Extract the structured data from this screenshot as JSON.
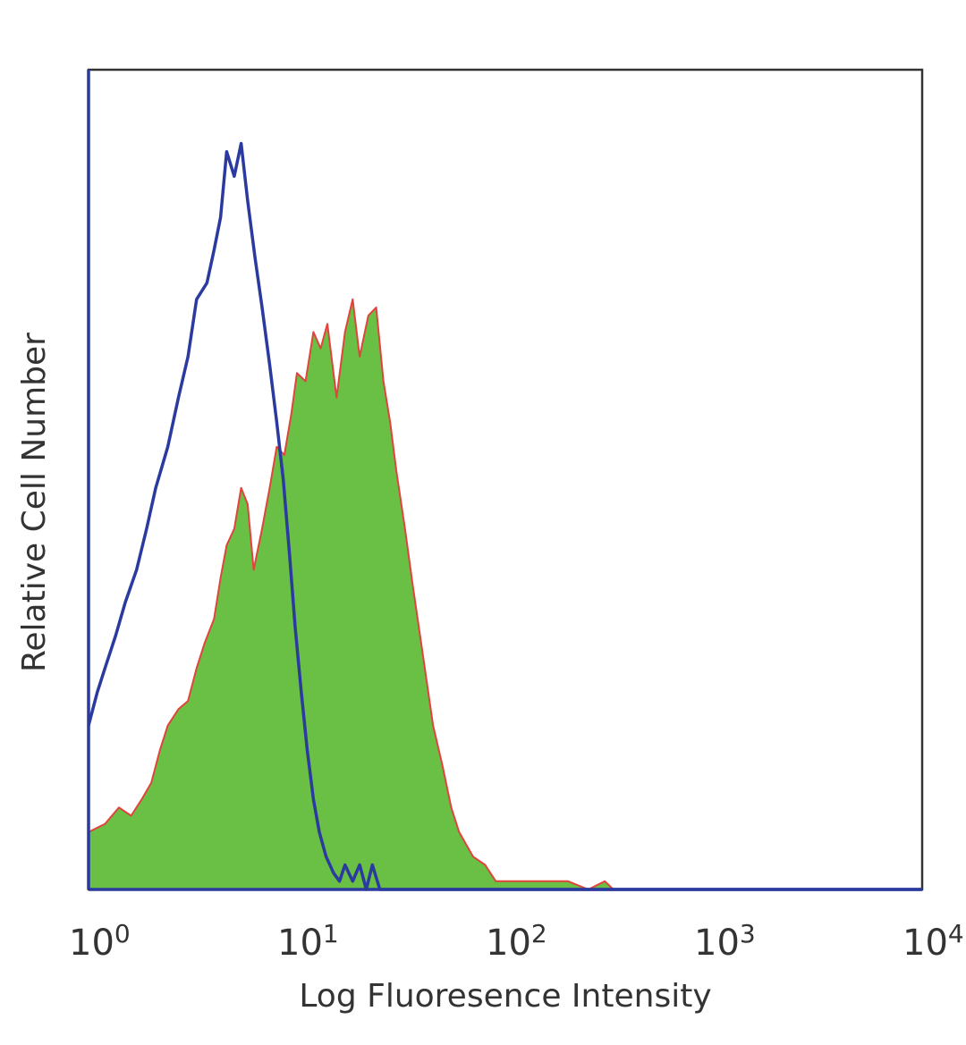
{
  "chart_data": {
    "type": "area",
    "title": "",
    "xlabel": "Log Fluoresence Intensity",
    "ylabel": "Relative Cell Number",
    "xscale": "log",
    "xlim": [
      1,
      10000
    ],
    "ylim": [
      0,
      100
    ],
    "grid": false,
    "legend": "none",
    "xticks": [
      {
        "value": 1,
        "base": "10",
        "exp": "0"
      },
      {
        "value": 10,
        "base": "10",
        "exp": "1"
      },
      {
        "value": 100,
        "base": "10",
        "exp": "2"
      },
      {
        "value": 1000,
        "base": "10",
        "exp": "3"
      },
      {
        "value": 10000,
        "base": "10",
        "exp": "4"
      }
    ],
    "series": [
      {
        "style": "line",
        "color": "#2b3a9e",
        "points": [
          [
            1.0,
            20
          ],
          [
            1.1,
            24
          ],
          [
            1.2,
            27
          ],
          [
            1.35,
            31
          ],
          [
            1.5,
            35
          ],
          [
            1.7,
            39
          ],
          [
            1.9,
            44
          ],
          [
            2.1,
            49
          ],
          [
            2.4,
            54
          ],
          [
            2.7,
            60
          ],
          [
            3.0,
            65
          ],
          [
            3.3,
            72
          ],
          [
            3.7,
            74
          ],
          [
            4.0,
            78
          ],
          [
            4.3,
            82
          ],
          [
            4.6,
            90
          ],
          [
            5.0,
            87
          ],
          [
            5.4,
            91
          ],
          [
            5.8,
            84
          ],
          [
            6.3,
            77
          ],
          [
            6.8,
            71
          ],
          [
            7.4,
            64
          ],
          [
            8.0,
            57
          ],
          [
            8.6,
            50
          ],
          [
            9.2,
            41
          ],
          [
            9.8,
            32
          ],
          [
            10.5,
            24
          ],
          [
            11.2,
            17
          ],
          [
            12.0,
            11
          ],
          [
            12.8,
            7
          ],
          [
            13.8,
            4
          ],
          [
            15.0,
            2
          ],
          [
            16.0,
            1
          ],
          [
            17.0,
            3
          ],
          [
            18.5,
            1
          ],
          [
            20.0,
            3
          ],
          [
            21.5,
            0
          ],
          [
            23.0,
            3
          ],
          [
            25.0,
            0
          ],
          [
            30.0,
            0
          ],
          [
            10000,
            0
          ]
        ]
      },
      {
        "style": "fill",
        "color": "#6abf45",
        "outline": "#e0443c",
        "points": [
          [
            1.0,
            7
          ],
          [
            1.2,
            8
          ],
          [
            1.4,
            10
          ],
          [
            1.6,
            9
          ],
          [
            1.8,
            11
          ],
          [
            2.0,
            13
          ],
          [
            2.2,
            17
          ],
          [
            2.4,
            20
          ],
          [
            2.7,
            22
          ],
          [
            3.0,
            23
          ],
          [
            3.3,
            27
          ],
          [
            3.6,
            30
          ],
          [
            4.0,
            33
          ],
          [
            4.3,
            38
          ],
          [
            4.6,
            42
          ],
          [
            5.0,
            44
          ],
          [
            5.4,
            49
          ],
          [
            5.8,
            47
          ],
          [
            6.2,
            39
          ],
          [
            6.8,
            44
          ],
          [
            7.4,
            49
          ],
          [
            8.0,
            54
          ],
          [
            8.7,
            53
          ],
          [
            9.4,
            58
          ],
          [
            10.0,
            63
          ],
          [
            11.0,
            62
          ],
          [
            12.0,
            68
          ],
          [
            13.0,
            66
          ],
          [
            14.0,
            69
          ],
          [
            15.5,
            60
          ],
          [
            17.0,
            68
          ],
          [
            18.5,
            72
          ],
          [
            20.0,
            65
          ],
          [
            22.0,
            70
          ],
          [
            24.0,
            71
          ],
          [
            26.0,
            62
          ],
          [
            28.0,
            57
          ],
          [
            30.0,
            51
          ],
          [
            33.0,
            44
          ],
          [
            36.0,
            37
          ],
          [
            40.0,
            29
          ],
          [
            45.0,
            20
          ],
          [
            50.0,
            15
          ],
          [
            55.0,
            10
          ],
          [
            60.0,
            7
          ],
          [
            70.0,
            4
          ],
          [
            80.0,
            3
          ],
          [
            90.0,
            1
          ],
          [
            100.0,
            1
          ],
          [
            120.0,
            1
          ],
          [
            150.0,
            1
          ],
          [
            200.0,
            1
          ],
          [
            250.0,
            0
          ],
          [
            300.0,
            1
          ],
          [
            330.0,
            0
          ],
          [
            10000,
            0
          ]
        ]
      }
    ]
  }
}
